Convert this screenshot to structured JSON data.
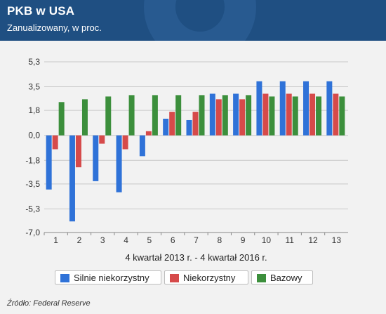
{
  "header": {
    "title": "PKB w USA",
    "subtitle": "Zanualizowany, w proc."
  },
  "source": "Źródło: Federal Reserve",
  "colors": {
    "header_bg": "#1f4f82",
    "series": [
      "#2f72d8",
      "#d64a4a",
      "#3c8f3c"
    ]
  },
  "legend": {
    "items": [
      {
        "label": "Silnie niekorzystny",
        "color": "#2f72d8"
      },
      {
        "label": "Niekorzystny",
        "color": "#d64a4a"
      },
      {
        "label": "Bazowy",
        "color": "#3c8f3c"
      }
    ]
  },
  "chart_data": {
    "type": "bar",
    "xlabel": "4 kwartał 2013 r. - 4 kwartał 2016 r.",
    "ylabel": "",
    "categories": [
      "1",
      "2",
      "3",
      "4",
      "5",
      "6",
      "7",
      "8",
      "9",
      "10",
      "11",
      "12",
      "13"
    ],
    "yticks": [
      "5,3",
      "3,5",
      "1,8",
      "0,0",
      "-1,8",
      "-3,5",
      "-5,3",
      "-7,0"
    ],
    "ytick_values": [
      5.3,
      3.5,
      1.8,
      0.0,
      -1.8,
      -3.5,
      -5.3,
      -7.0
    ],
    "ylim": [
      -7.0,
      5.3
    ],
    "grid": true,
    "legend_position": "bottom",
    "series": [
      {
        "name": "Silnie niekorzystny",
        "values": [
          -3.9,
          -6.2,
          -3.3,
          -4.1,
          -1.5,
          1.2,
          1.1,
          3.0,
          3.0,
          3.9,
          3.9,
          3.9,
          3.9
        ]
      },
      {
        "name": "Niekorzystny",
        "values": [
          -1.0,
          -2.3,
          -0.6,
          -1.0,
          0.3,
          1.7,
          1.7,
          2.6,
          2.6,
          3.0,
          3.0,
          3.0,
          3.0
        ]
      },
      {
        "name": "Bazowy",
        "values": [
          2.4,
          2.6,
          2.8,
          2.9,
          2.9,
          2.9,
          2.9,
          2.9,
          2.9,
          2.8,
          2.8,
          2.8,
          2.8
        ]
      }
    ]
  }
}
